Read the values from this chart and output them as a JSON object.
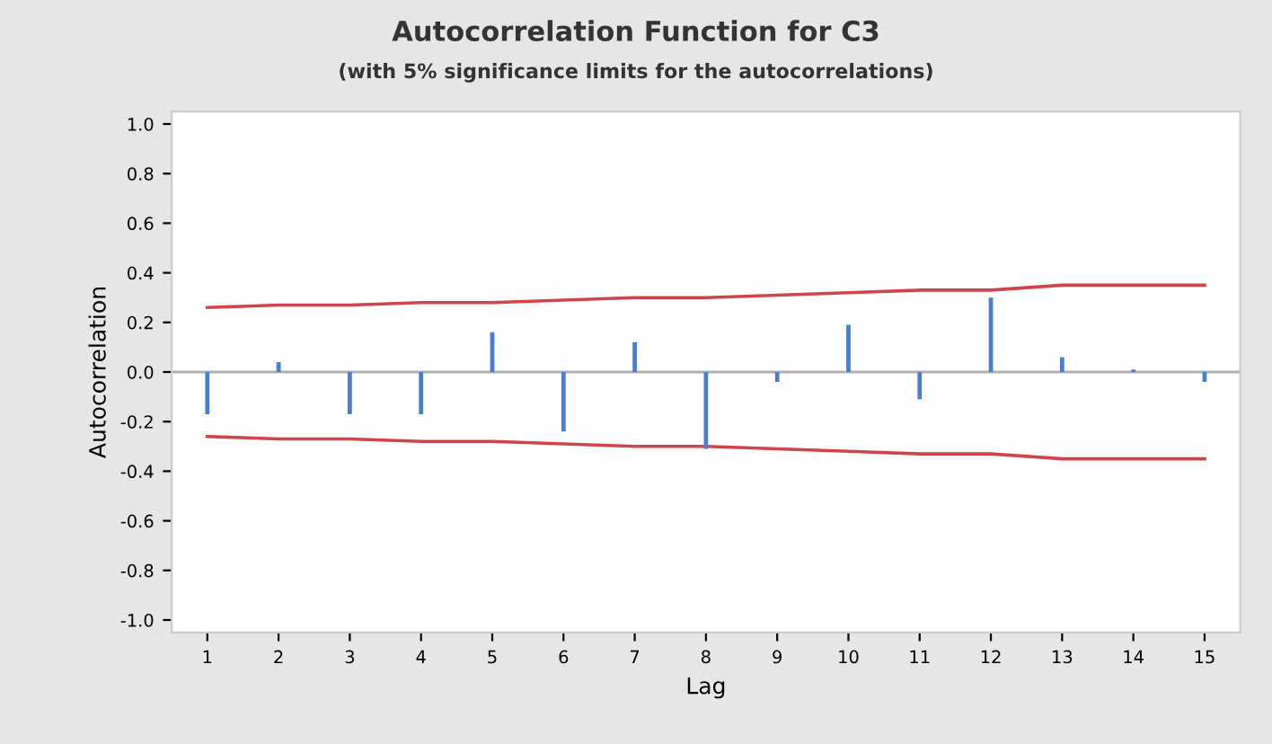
{
  "chart_data": {
    "type": "bar",
    "title": "Autocorrelation Function for C3",
    "subtitle": "(with 5% significance limits for the autocorrelations)",
    "xlabel": "Lag",
    "ylabel": "Autocorrelation",
    "x": [
      1,
      2,
      3,
      4,
      5,
      6,
      7,
      8,
      9,
      10,
      11,
      12,
      13,
      14,
      15
    ],
    "xlim": [
      0.5,
      15.5
    ],
    "xticks": [
      1,
      2,
      3,
      4,
      5,
      6,
      7,
      8,
      9,
      10,
      11,
      12,
      13,
      14,
      15
    ],
    "ylim": [
      -1.05,
      1.05
    ],
    "yticks": [
      {
        "value": -1.0,
        "label": "-1.0"
      },
      {
        "value": -0.8,
        "label": "-0.8"
      },
      {
        "value": -0.6,
        "label": "-0.6"
      },
      {
        "value": -0.4,
        "label": "-0.4"
      },
      {
        "value": -0.2,
        "label": "-0.2"
      },
      {
        "value": 0.0,
        "label": "0.0"
      },
      {
        "value": 0.2,
        "label": "0.2"
      },
      {
        "value": 0.4,
        "label": "0.4"
      },
      {
        "value": 0.6,
        "label": "0.6"
      },
      {
        "value": 0.8,
        "label": "0.8"
      },
      {
        "value": 1.0,
        "label": "1.0"
      }
    ],
    "series": [
      {
        "color": "#4a7cd0",
        "values": [
          -0.17,
          0.04,
          -0.17,
          -0.17,
          0.16,
          -0.24,
          0.12,
          -0.31,
          -0.04,
          0.19,
          -0.11,
          0.3,
          0.06,
          0.01,
          -0.04
        ]
      },
      {
        "type": "line",
        "color": "#d0454a",
        "values": [
          0.26,
          0.27,
          0.27,
          0.28,
          0.28,
          0.29,
          0.3,
          0.3,
          0.31,
          0.32,
          0.33,
          0.33,
          0.35,
          0.35,
          0.35
        ]
      },
      {
        "type": "line",
        "color": "#d0454a",
        "values": [
          -0.26,
          -0.27,
          -0.27,
          -0.28,
          -0.28,
          -0.29,
          -0.3,
          -0.3,
          -0.31,
          -0.32,
          -0.33,
          -0.33,
          -0.35,
          -0.35,
          -0.35
        ]
      }
    ],
    "ref_lines": [
      {
        "axis": "y",
        "value": 0,
        "color": "#b0b0b0"
      }
    ],
    "grid": false,
    "legend": false
  }
}
